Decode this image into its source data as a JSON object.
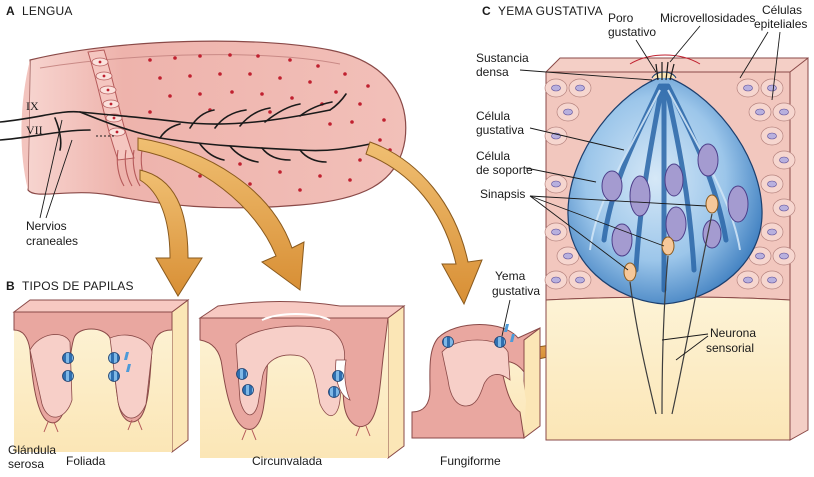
{
  "sections": {
    "a": {
      "letter": "A",
      "title": "LENGUA"
    },
    "b": {
      "letter": "B",
      "title": "TIPOS DE PAPILAS"
    },
    "c": {
      "letter": "C",
      "title": "YEMA GUSTATIVA"
    }
  },
  "tongue": {
    "nerve_ix": "IX",
    "nerve_vii": "VII",
    "cranial_nerves": [
      "Nervios",
      "craneales"
    ]
  },
  "papillae": {
    "foliate": "Foliada",
    "circumvallate": "Circunvalada",
    "fungiform": "Fungiforme",
    "serous_gland": [
      "Glándula",
      "serosa"
    ],
    "taste_bud": [
      "Yema",
      "gustativa"
    ]
  },
  "bud": {
    "taste_pore": [
      "Poro",
      "gustativo"
    ],
    "microvilli": "Microvellosidades",
    "epithelial_cells": [
      "Células",
      "epiteliales"
    ],
    "dense_substance": [
      "Sustancia",
      "densa"
    ],
    "taste_cell": [
      "Célula",
      "gustativa"
    ],
    "support_cell": [
      "Célula",
      "de soporte"
    ],
    "synapses": "Sinapsis",
    "sensory_neuron": [
      "Neurona",
      "sensorial"
    ]
  },
  "colors": {
    "tongue_fill": "#eeb3ac",
    "papilla_dots": "#c0202f",
    "arrow_fill": "#e3a24c",
    "bud_blue": "#6aa4d8",
    "cell_purple": "#a49bd0",
    "tissue_pink": "#f2c7be",
    "cream": "#fcefc8"
  }
}
